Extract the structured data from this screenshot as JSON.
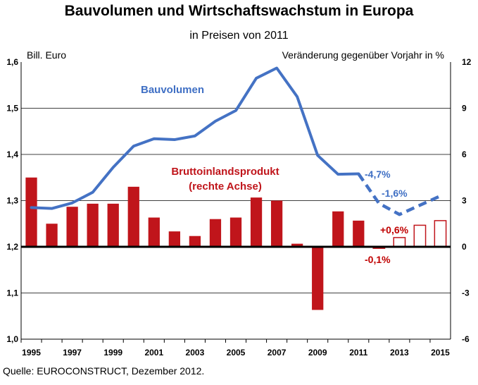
{
  "chart_data": {
    "type": "bar+line",
    "title": "Bauvolumen und Wirtschaftswachstum in Europa",
    "subtitle": "in Preisen von 2011",
    "ylabel_left": "Bill. Euro",
    "ylabel_right": "Veränderung gegenüber Vorjahr in %",
    "ylim_left": [
      1.0,
      1.6
    ],
    "ylim_right": [
      -6,
      12
    ],
    "yticks_left": [
      "1,0",
      "1,1",
      "1,2",
      "1,3",
      "1,4",
      "1,5",
      "1,6"
    ],
    "yticks_right": [
      "-6",
      "-3",
      "0",
      "3",
      "6",
      "9",
      "12"
    ],
    "xticks": [
      "1995",
      "1997",
      "1999",
      "2001",
      "2003",
      "2005",
      "2007",
      "2009",
      "2011",
      "2013",
      "2015"
    ],
    "years": [
      1995,
      1996,
      1997,
      1998,
      1999,
      2000,
      2001,
      2002,
      2003,
      2004,
      2005,
      2006,
      2007,
      2008,
      2009,
      2010,
      2011,
      2012,
      2013,
      2014,
      2015
    ],
    "grid": true,
    "series": [
      {
        "name": "Bauvolumen",
        "axis": "left",
        "chart_type": "line",
        "color": "#4472c4",
        "values": [
          1.285,
          1.283,
          1.295,
          1.318,
          1.372,
          1.418,
          1.434,
          1.432,
          1.44,
          1.472,
          1.495,
          1.565,
          1.587,
          1.525,
          1.398,
          1.357,
          1.358,
          1.294,
          1.27,
          1.29,
          1.31
        ],
        "forecast_from": 2011
      },
      {
        "name": "Bruttoinlandsprodukt (rechte Achse)",
        "axis": "right",
        "chart_type": "bar",
        "color": "#c0151b",
        "values": [
          4.5,
          1.5,
          2.6,
          2.8,
          2.8,
          3.9,
          1.9,
          1.0,
          0.7,
          1.8,
          1.9,
          3.2,
          3.0,
          0.2,
          -4.1,
          2.3,
          1.7,
          -0.1,
          0.6,
          1.4,
          1.7
        ],
        "forecast_from": 2012
      }
    ],
    "annotations": [
      "-4,7%",
      "-1,6%",
      "+0,6%",
      "-0,1%"
    ]
  },
  "source": "Quelle: EUROCONSTRUCT, Dezember 2012.",
  "colors": {
    "line": "#4472c4",
    "bar": "#c0151b",
    "grid": "#000000",
    "zero_line": "#000000"
  }
}
